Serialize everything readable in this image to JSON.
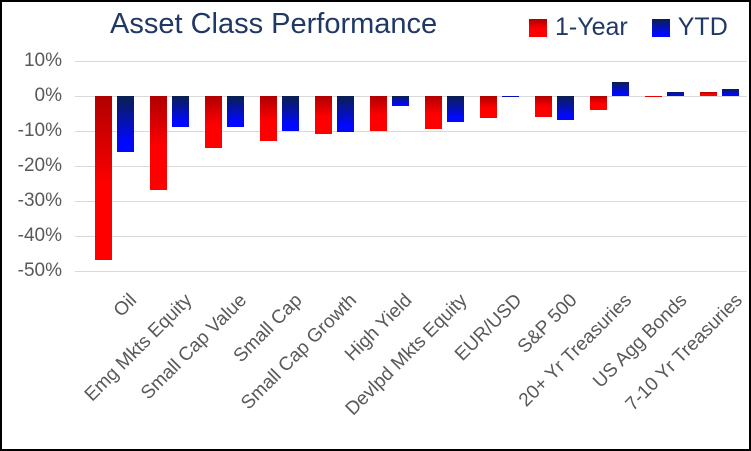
{
  "window": {
    "background": "#ffffff",
    "border_color": "#000000"
  },
  "chart_data": {
    "type": "bar",
    "title": "Asset Class Performance",
    "title_color": "#1f3864",
    "axis_label_color": "#595959",
    "gridline_color": "#d9d9d9",
    "unit": "%",
    "categories": [
      "Oil",
      "Emg Mkts Equity",
      "Small Cap Value",
      "Small Cap",
      "Small Cap Growth",
      "High Yield",
      "Devlpd Mkts Equity",
      "EUR/USD",
      "S&P 500",
      "20+ Yr Treasuries",
      "US Agg Bonds",
      "7-10 Yr Treasuries"
    ],
    "series": [
      {
        "name": "1-Year",
        "color": "#ff0000",
        "color_dark": "#b00000",
        "values": [
          -47,
          -27,
          -15,
          -13,
          -11,
          -10,
          -9.5,
          -6.5,
          -6,
          -4,
          -0.5,
          1
        ]
      },
      {
        "name": "YTD",
        "color": "#0008ff",
        "color_dark": "#0b1f4e",
        "values": [
          -16,
          -9,
          -9,
          -10,
          -10.5,
          -3,
          -7.5,
          -0.5,
          -7,
          4,
          1,
          2
        ]
      }
    ],
    "y_axis": {
      "ticks": [
        "10%",
        "0%",
        "-10%",
        "-20%",
        "-30%",
        "-40%",
        "-50%"
      ],
      "tick_values": [
        10,
        0,
        -10,
        -20,
        -30,
        -40,
        -50
      ],
      "min": -50,
      "max": 10
    },
    "grid": true,
    "legend_position": "top-right",
    "xlabel": "",
    "ylabel": ""
  }
}
